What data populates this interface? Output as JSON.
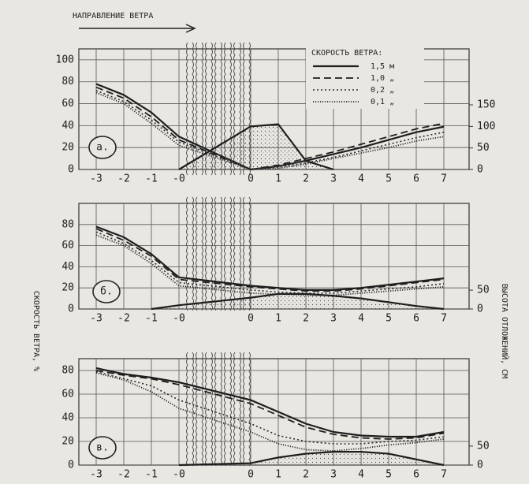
{
  "chart_data": [
    {
      "type": "line",
      "panel_label": "а.",
      "annotation": "НАПРАВЛЕНИЕ ВЕТРА",
      "legend_title": "СКОРОСТЬ ВЕТРА:",
      "legend": "upper right",
      "categories": [
        "-3",
        "-2",
        "-1",
        "-0",
        "0",
        "1",
        "2",
        "3",
        "4",
        "5",
        "6",
        "7"
      ],
      "ylim": [
        0,
        110
      ],
      "yticks": [
        0,
        20,
        40,
        60,
        80,
        100
      ],
      "y2lim": [
        0,
        280
      ],
      "y2ticks": [
        0,
        50,
        100,
        150
      ],
      "grid": true,
      "series": [
        {
          "name": "1,5 м",
          "color": "#1e1e1e",
          "style": "solid",
          "values": [
            78,
            68,
            52,
            30,
            0,
            3,
            8,
            14,
            20,
            27,
            34,
            39
          ]
        },
        {
          "name": "1,0 „",
          "color": "#1e1e1e",
          "style": "dashed",
          "values": [
            75,
            65,
            48,
            27,
            0,
            4,
            10,
            16,
            23,
            30,
            37,
            42
          ]
        },
        {
          "name": "0,2 „",
          "color": "#2a2a2a",
          "style": "dotted",
          "values": [
            72,
            62,
            45,
            25,
            0,
            2,
            6,
            11,
            17,
            23,
            29,
            34
          ]
        },
        {
          "name": "0,1 „",
          "color": "#2a2a2a",
          "style": "dense-dotted",
          "values": [
            70,
            60,
            42,
            22,
            0,
            1,
            5,
            10,
            15,
            20,
            26,
            30
          ]
        },
        {
          "type": "area",
          "axis": "y2",
          "color": "#1e1e1e",
          "style": "solid",
          "values": [
            null,
            null,
            null,
            0,
            100,
            105,
            20,
            0,
            null,
            null,
            null,
            null
          ]
        }
      ]
    },
    {
      "type": "line",
      "panel_label": "б.",
      "ylabel": "СКОРОСТЬ ВЕТРА, %",
      "y2label": "ВЫСОТА ОТЛОЖЕНИЙ, СМ",
      "categories": [
        "-3",
        "-2",
        "-1",
        "-0",
        "0",
        "1",
        "2",
        "3",
        "4",
        "5",
        "6",
        "7"
      ],
      "ylim": [
        0,
        100
      ],
      "yticks": [
        0,
        20,
        40,
        60,
        80
      ],
      "y2lim": [
        0,
        280
      ],
      "y2ticks": [
        0,
        50
      ],
      "grid": true,
      "series": [
        {
          "color": "#1e1e1e",
          "style": "solid",
          "values": [
            78,
            68,
            52,
            30,
            22,
            20,
            18,
            18,
            20,
            23,
            26,
            29
          ]
        },
        {
          "color": "#1e1e1e",
          "style": "dashed",
          "values": [
            76,
            65,
            50,
            28,
            21,
            19,
            17,
            17,
            19,
            22,
            25,
            28
          ]
        },
        {
          "color": "#2a2a2a",
          "style": "dotted",
          "values": [
            73,
            62,
            46,
            25,
            18,
            16,
            15,
            15,
            17,
            19,
            21,
            24
          ]
        },
        {
          "color": "#2a2a2a",
          "style": "dense-dotted",
          "values": [
            70,
            60,
            43,
            22,
            15,
            14,
            13,
            13,
            15,
            17,
            19,
            21
          ]
        },
        {
          "type": "area",
          "axis": "y2",
          "color": "#1e1e1e",
          "style": "solid",
          "values": [
            null,
            null,
            0,
            10,
            30,
            40,
            40,
            35,
            28,
            18,
            8,
            0
          ]
        }
      ]
    },
    {
      "type": "line",
      "panel_label": "в.",
      "categories": [
        "-3",
        "-2",
        "-1",
        "-0",
        "0",
        "1",
        "2",
        "3",
        "4",
        "5",
        "6",
        "7"
      ],
      "ylim": [
        0,
        90
      ],
      "yticks": [
        0,
        20,
        40,
        60,
        80
      ],
      "y2lim": [
        0,
        280
      ],
      "y2ticks": [
        0,
        50
      ],
      "grid": true,
      "series": [
        {
          "color": "#1e1e1e",
          "style": "solid",
          "values": [
            82,
            77,
            74,
            70,
            55,
            45,
            35,
            28,
            25,
            24,
            24,
            28
          ]
        },
        {
          "color": "#1e1e1e",
          "style": "dashed",
          "values": [
            80,
            76,
            73,
            68,
            52,
            42,
            32,
            26,
            23,
            22,
            23,
            27
          ]
        },
        {
          "color": "#2a2a2a",
          "style": "dotted",
          "values": [
            79,
            73,
            67,
            55,
            35,
            25,
            20,
            18,
            18,
            20,
            21,
            24
          ]
        },
        {
          "color": "#2a2a2a",
          "style": "dense-dotted",
          "values": [
            78,
            72,
            62,
            48,
            28,
            18,
            13,
            12,
            14,
            17,
            19,
            22
          ]
        },
        {
          "type": "area",
          "axis": "y2",
          "color": "#1e1e1e",
          "style": "solid",
          "values": [
            null,
            null,
            null,
            0,
            5,
            20,
            30,
            35,
            35,
            30,
            15,
            0
          ]
        }
      ]
    }
  ]
}
